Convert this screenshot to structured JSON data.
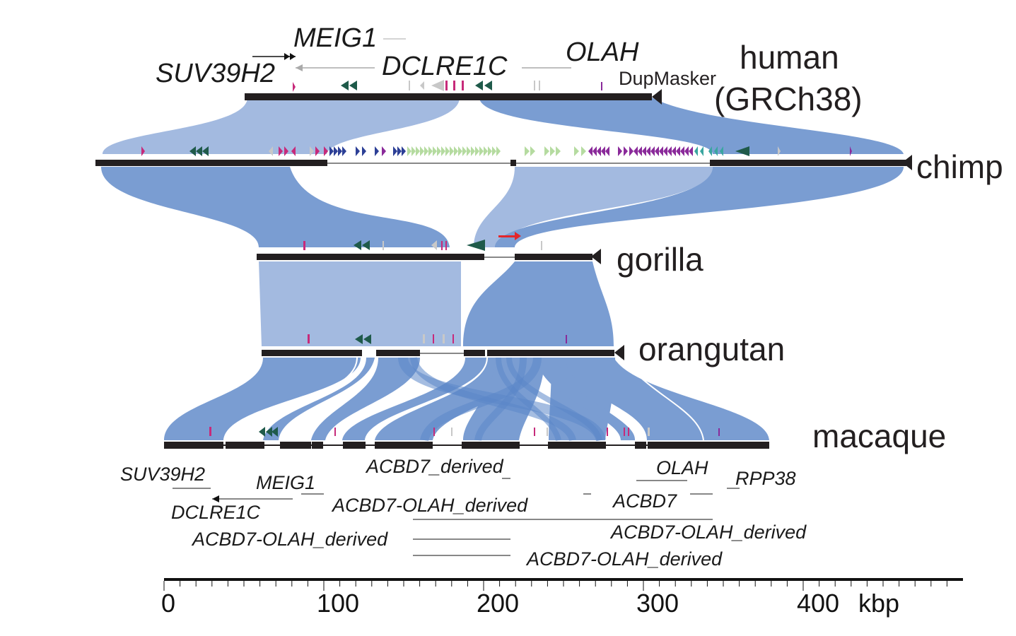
{
  "species": [
    {
      "name": "human",
      "extra": "(GRCh38)"
    },
    {
      "name": "chimp"
    },
    {
      "name": "gorilla"
    },
    {
      "name": "orangutan"
    },
    {
      "name": "macaque"
    }
  ],
  "track_label": "DupMasker",
  "human_genes": {
    "meig1": "MEIG1",
    "olah": "OLAH",
    "suv39h2": "SUV39H2",
    "dclre1c": "DCLRE1C"
  },
  "macaque_genes": {
    "suv39h2": "SUV39H2",
    "meig1": "MEIG1",
    "dclre1c": "DCLRE1C",
    "acbd7_derived": "ACBD7_derived",
    "acbd7_olah_derived_1": "ACBD7-OLAH_derived",
    "acbd7_olah_derived_2": "ACBD7-OLAH_derived",
    "acbd7_olah_derived_3": "ACBD7-OLAH_derived",
    "acbd7_olah_derived_4": "ACBD7-OLAH_derived",
    "olah": "OLAH",
    "acbd7": "ACBD7",
    "rpp38": "RPP38"
  },
  "axis": {
    "ticks": [
      "0",
      "100",
      "200",
      "300",
      "400"
    ],
    "unit": "kbp",
    "range_kbp": [
      0,
      500
    ]
  },
  "colors": {
    "ribbon_light": "#a3bae0",
    "ribbon_dark": "#7a9dd2",
    "ribbon_cross": "#5b86c8",
    "bar": "#231f20",
    "dup_dark_green": "#1f5a4a",
    "dup_light_green": "#b5dba0",
    "dup_magenta": "#c72a7a",
    "dup_purple": "#8a2a9a",
    "dup_navy": "#2c3f96",
    "dup_grey": "#c8c8c8",
    "dup_red": "#e3262b"
  }
}
